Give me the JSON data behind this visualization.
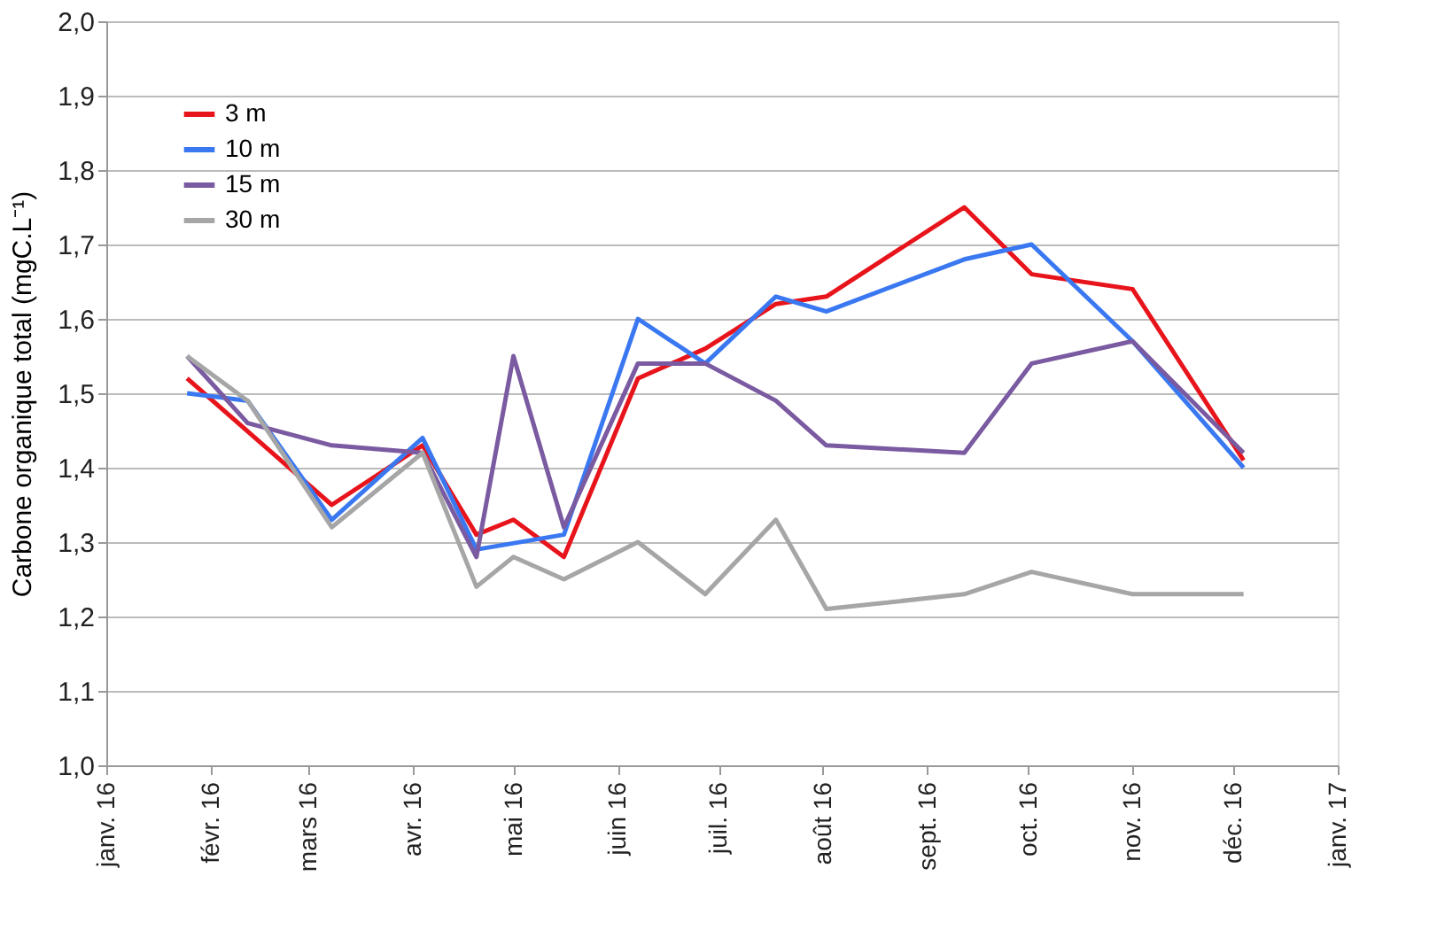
{
  "chart_data": {
    "type": "line",
    "ylabel": "Carbone organique total (mgC.L⁻¹)",
    "xlim": [
      "2016-01-01",
      "2017-01-01"
    ],
    "xticks": [
      {
        "value": "2016-01-01",
        "label": "janv. 16"
      },
      {
        "value": "2016-02-01",
        "label": "févr. 16"
      },
      {
        "value": "2016-03-01",
        "label": "mars 16"
      },
      {
        "value": "2016-04-01",
        "label": "avr. 16"
      },
      {
        "value": "2016-05-01",
        "label": "mai 16"
      },
      {
        "value": "2016-06-01",
        "label": "juin 16"
      },
      {
        "value": "2016-07-01",
        "label": "juil. 16"
      },
      {
        "value": "2016-08-01",
        "label": "août 16"
      },
      {
        "value": "2016-09-01",
        "label": "sept. 16"
      },
      {
        "value": "2016-10-01",
        "label": "oct. 16"
      },
      {
        "value": "2016-11-01",
        "label": "nov. 16"
      },
      {
        "value": "2016-12-01",
        "label": "déc. 16"
      },
      {
        "value": "2017-01-01",
        "label": "janv. 17"
      }
    ],
    "ylim": [
      1.0,
      2.0
    ],
    "yticks": [
      {
        "value": 1.0,
        "label": "1,0"
      },
      {
        "value": 1.1,
        "label": "1,1"
      },
      {
        "value": 1.2,
        "label": "1,2"
      },
      {
        "value": 1.3,
        "label": "1,3"
      },
      {
        "value": 1.4,
        "label": "1,4"
      },
      {
        "value": 1.5,
        "label": "1,5"
      },
      {
        "value": 1.6,
        "label": "1,6"
      },
      {
        "value": 1.7,
        "label": "1,7"
      },
      {
        "value": 1.8,
        "label": "1,8"
      },
      {
        "value": 1.9,
        "label": "1,9"
      },
      {
        "value": 2.0,
        "label": "2,0"
      }
    ],
    "grid": "y",
    "legend": "top left",
    "marker": "none",
    "line_style": "solid",
    "series": [
      {
        "name": "3 m",
        "color": "#e8141b",
        "x": [
          "2016-01-25",
          "2016-03-08",
          "2016-04-04",
          "2016-04-20",
          "2016-05-01",
          "2016-05-16",
          "2016-06-07",
          "2016-06-27",
          "2016-07-18",
          "2016-08-02",
          "2016-09-12",
          "2016-10-02",
          "2016-11-01",
          "2016-12-04"
        ],
        "values": [
          1.52,
          1.35,
          1.43,
          1.31,
          1.33,
          1.28,
          1.52,
          1.56,
          1.62,
          1.63,
          1.75,
          1.66,
          1.64,
          1.41
        ]
      },
      {
        "name": "10 m",
        "color": "#3a78f2",
        "x": [
          "2016-01-25",
          "2016-02-12",
          "2016-03-08",
          "2016-04-04",
          "2016-04-20",
          "2016-05-16",
          "2016-06-07",
          "2016-06-27",
          "2016-07-18",
          "2016-08-02",
          "2016-09-12",
          "2016-10-02",
          "2016-11-01",
          "2016-12-04"
        ],
        "values": [
          1.5,
          1.49,
          1.33,
          1.44,
          1.29,
          1.31,
          1.6,
          1.54,
          1.63,
          1.61,
          1.68,
          1.7,
          1.57,
          1.4
        ]
      },
      {
        "name": "15 m",
        "color": "#7a5aa0",
        "x": [
          "2016-01-25",
          "2016-02-12",
          "2016-03-08",
          "2016-04-04",
          "2016-04-20",
          "2016-05-01",
          "2016-05-16",
          "2016-06-07",
          "2016-06-27",
          "2016-07-18",
          "2016-08-02",
          "2016-09-12",
          "2016-10-02",
          "2016-11-01",
          "2016-12-04"
        ],
        "values": [
          1.55,
          1.46,
          1.43,
          1.42,
          1.28,
          1.55,
          1.32,
          1.54,
          1.54,
          1.49,
          1.43,
          1.42,
          1.54,
          1.57,
          1.42
        ]
      },
      {
        "name": "30 m",
        "color": "#a6a6a6",
        "x": [
          "2016-01-25",
          "2016-02-12",
          "2016-03-08",
          "2016-04-04",
          "2016-04-20",
          "2016-05-01",
          "2016-05-16",
          "2016-06-07",
          "2016-06-27",
          "2016-07-18",
          "2016-08-02",
          "2016-09-12",
          "2016-10-02",
          "2016-11-01",
          "2016-12-04"
        ],
        "values": [
          1.55,
          1.49,
          1.32,
          1.42,
          1.24,
          1.28,
          1.25,
          1.3,
          1.23,
          1.33,
          1.21,
          1.23,
          1.26,
          1.23,
          1.23
        ]
      }
    ]
  }
}
